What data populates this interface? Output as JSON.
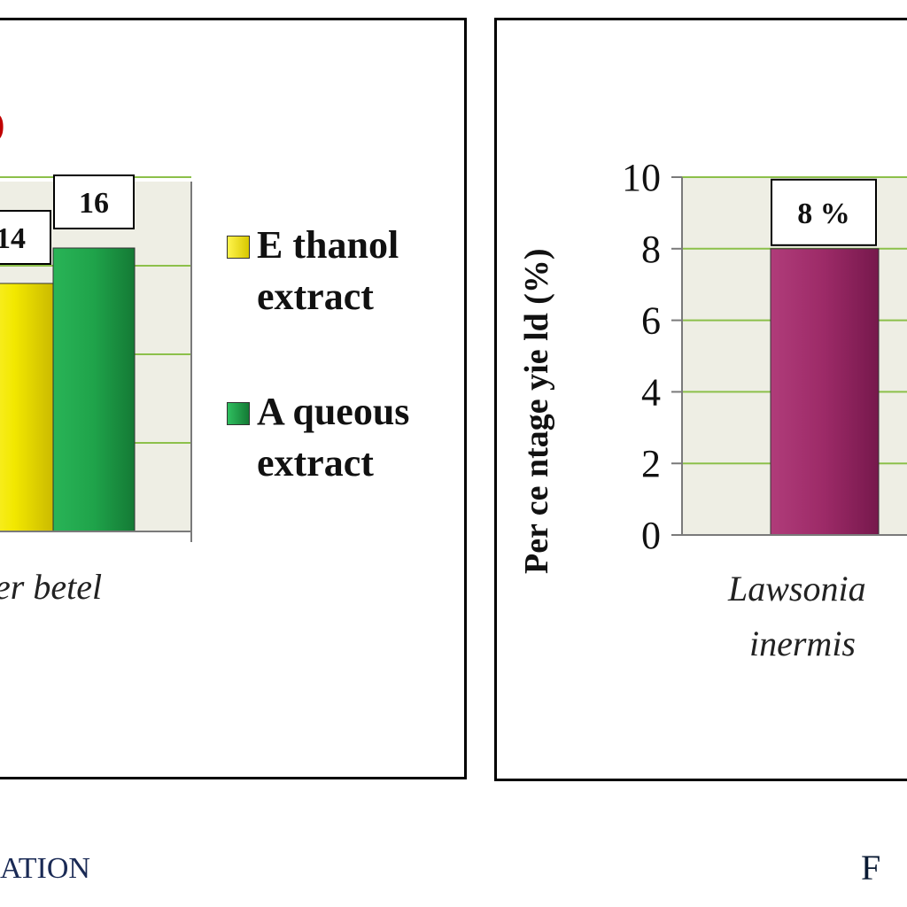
{
  "left_chart": {
    "partial_title_fragment": ")",
    "category_label_fragment": "er betel",
    "legend": [
      {
        "label": "E thanol extract",
        "color": "#f2e800"
      },
      {
        "label": "A queous extract",
        "color": "#1fa34a"
      }
    ],
    "caption_fragment": "ATION"
  },
  "right_chart": {
    "ylabel": "Per ce ntage  yie ld  (%)",
    "category_label_line1": "Lawsonia",
    "category_label_line2": "inermis",
    "caption_fragment": "F"
  },
  "chart_data": [
    {
      "type": "bar",
      "categories": [
        "Piper betel"
      ],
      "series": [
        {
          "name": "E thanol extract",
          "values": [
            14
          ],
          "color": "#f2e800",
          "data_label": "14"
        },
        {
          "name": "A queous extract",
          "values": [
            16
          ],
          "color": "#1fa34a",
          "data_label": "16"
        }
      ],
      "grid": true,
      "legend": "right"
    },
    {
      "type": "bar",
      "categories": [
        "Lawsonia inermis"
      ],
      "series": [
        {
          "values": [
            8
          ],
          "color": "#9c2a67",
          "data_label": "8  %"
        }
      ],
      "ylabel": "Per ce ntage  yie ld  (%)",
      "ylim": [
        0,
        10
      ],
      "yticks": [
        0,
        2,
        4,
        6,
        8,
        10
      ],
      "grid": true
    }
  ]
}
